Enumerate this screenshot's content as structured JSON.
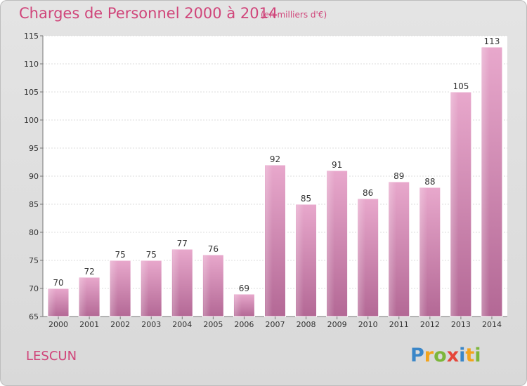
{
  "title": "Charges de Personnel 2000 à 2014",
  "subtitle": "(en milliers d'€)",
  "commune": "LESCUN",
  "logo": {
    "letters": [
      "P",
      "r",
      "o",
      "x",
      "i",
      "t",
      "i"
    ],
    "colors": [
      "#3a86c8",
      "#f2a41c",
      "#7cb63a",
      "#e5463a",
      "#3a86c8",
      "#f2a41c",
      "#7cb63a"
    ]
  },
  "chart_data": {
    "type": "bar",
    "categories": [
      "2000",
      "2001",
      "2002",
      "2003",
      "2004",
      "2005",
      "2006",
      "2007",
      "2008",
      "2009",
      "2010",
      "2011",
      "2012",
      "2013",
      "2014"
    ],
    "values": [
      70,
      72,
      75,
      75,
      77,
      76,
      69,
      92,
      85,
      91,
      86,
      89,
      88,
      105,
      113
    ],
    "ylim": [
      65,
      115
    ],
    "yticks": [
      65,
      70,
      75,
      80,
      85,
      90,
      95,
      100,
      105,
      110,
      115
    ],
    "bar_color": "#d97fb0",
    "grid": true
  }
}
